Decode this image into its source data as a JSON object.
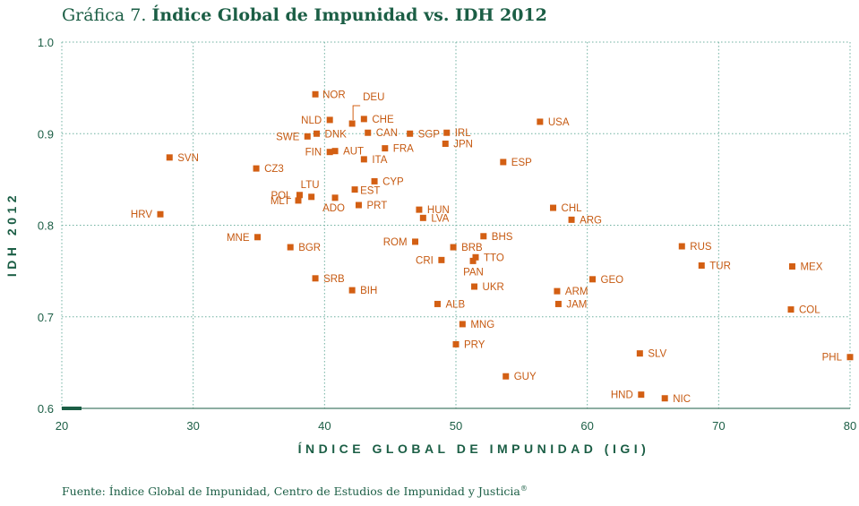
{
  "title": {
    "prefix": "Gráfica 7.",
    "main": "Índice Global de Impunidad vs. IDH 2012"
  },
  "source": {
    "text": "Fuente: Índice Global de Impunidad, Centro de Estudios de Impunidad y Justicia",
    "mark": "®"
  },
  "colors": {
    "points": "#d35f13",
    "labels": "#c65a12",
    "text": "#1b5e45",
    "grid": "#6fb0a0"
  },
  "chart_data": {
    "type": "scatter",
    "title": "Índice Global de Impunidad vs. IDH 2012",
    "xlabel": "ÍNDICE GLOBAL DE IMPUNIDAD (IGI)",
    "ylabel": "IDH 2012",
    "xlim": [
      20,
      80
    ],
    "ylim": [
      0.6,
      1.0
    ],
    "xticks": [
      "20",
      "30",
      "40",
      "50",
      "60",
      "70",
      "80"
    ],
    "yticks": [
      "0.6",
      "0.7",
      "0.8",
      "0.9",
      "1.0"
    ],
    "grid": true,
    "points": [
      {
        "label": "NOR",
        "x": 39.3,
        "y": 0.943
      },
      {
        "label": "DEU",
        "x": 42.1,
        "y": 0.911
      },
      {
        "label": "CHE",
        "x": 43.0,
        "y": 0.916
      },
      {
        "label": "NLD",
        "x": 40.4,
        "y": 0.915
      },
      {
        "label": "SWE",
        "x": 38.7,
        "y": 0.897
      },
      {
        "label": "DNK",
        "x": 39.4,
        "y": 0.9
      },
      {
        "label": "CAN",
        "x": 43.3,
        "y": 0.901
      },
      {
        "label": "SGP",
        "x": 46.5,
        "y": 0.9
      },
      {
        "label": "IRL",
        "x": 49.3,
        "y": 0.901
      },
      {
        "label": "USA",
        "x": 56.4,
        "y": 0.913
      },
      {
        "label": "JPN",
        "x": 49.2,
        "y": 0.889
      },
      {
        "label": "AUT",
        "x": 40.8,
        "y": 0.881
      },
      {
        "label": "FIN",
        "x": 40.4,
        "y": 0.88
      },
      {
        "label": "FRA",
        "x": 44.6,
        "y": 0.884
      },
      {
        "label": "ITA",
        "x": 43.0,
        "y": 0.872
      },
      {
        "label": "SVN",
        "x": 28.2,
        "y": 0.874
      },
      {
        "label": "CZ3",
        "x": 34.8,
        "y": 0.862
      },
      {
        "label": "ESP",
        "x": 53.6,
        "y": 0.869
      },
      {
        "label": "CYP",
        "x": 43.8,
        "y": 0.848
      },
      {
        "label": "LTU",
        "x": 39.0,
        "y": 0.831
      },
      {
        "label": "EST",
        "x": 42.3,
        "y": 0.839
      },
      {
        "label": "POL",
        "x": 38.1,
        "y": 0.833
      },
      {
        "label": "MLT",
        "x": 38.0,
        "y": 0.827
      },
      {
        "label": "ADO",
        "x": 40.8,
        "y": 0.83
      },
      {
        "label": "PRT",
        "x": 42.6,
        "y": 0.822
      },
      {
        "label": "HUN",
        "x": 47.2,
        "y": 0.817
      },
      {
        "label": "LVA",
        "x": 47.5,
        "y": 0.808
      },
      {
        "label": "CHL",
        "x": 57.4,
        "y": 0.819
      },
      {
        "label": "ARG",
        "x": 58.8,
        "y": 0.806
      },
      {
        "label": "HRV",
        "x": 27.5,
        "y": 0.812
      },
      {
        "label": "MNE",
        "x": 34.9,
        "y": 0.787
      },
      {
        "label": "BGR",
        "x": 37.4,
        "y": 0.776
      },
      {
        "label": "ROM",
        "x": 46.9,
        "y": 0.782
      },
      {
        "label": "BHS",
        "x": 52.1,
        "y": 0.788
      },
      {
        "label": "BRB",
        "x": 49.8,
        "y": 0.776
      },
      {
        "label": "TTO",
        "x": 51.5,
        "y": 0.765
      },
      {
        "label": "CRI",
        "x": 48.9,
        "y": 0.762
      },
      {
        "label": "PAN",
        "x": 51.3,
        "y": 0.761
      },
      {
        "label": "RUS",
        "x": 67.2,
        "y": 0.777
      },
      {
        "label": "TUR",
        "x": 68.7,
        "y": 0.756
      },
      {
        "label": "MEX",
        "x": 75.6,
        "y": 0.755
      },
      {
        "label": "SRB",
        "x": 39.3,
        "y": 0.742
      },
      {
        "label": "GEO",
        "x": 60.4,
        "y": 0.741
      },
      {
        "label": "UKR",
        "x": 51.4,
        "y": 0.733
      },
      {
        "label": "BIH",
        "x": 42.1,
        "y": 0.729
      },
      {
        "label": "ARM",
        "x": 57.7,
        "y": 0.728
      },
      {
        "label": "ALB",
        "x": 48.6,
        "y": 0.714
      },
      {
        "label": "JAM",
        "x": 57.8,
        "y": 0.714
      },
      {
        "label": "COL",
        "x": 75.5,
        "y": 0.708
      },
      {
        "label": "MNG",
        "x": 50.5,
        "y": 0.692
      },
      {
        "label": "PRY",
        "x": 50.0,
        "y": 0.67
      },
      {
        "label": "SLV",
        "x": 64.0,
        "y": 0.66
      },
      {
        "label": "PHL",
        "x": 80.0,
        "y": 0.656
      },
      {
        "label": "GUY",
        "x": 53.8,
        "y": 0.635
      },
      {
        "label": "HND",
        "x": 64.1,
        "y": 0.615
      },
      {
        "label": "NIC",
        "x": 65.9,
        "y": 0.611
      }
    ]
  }
}
